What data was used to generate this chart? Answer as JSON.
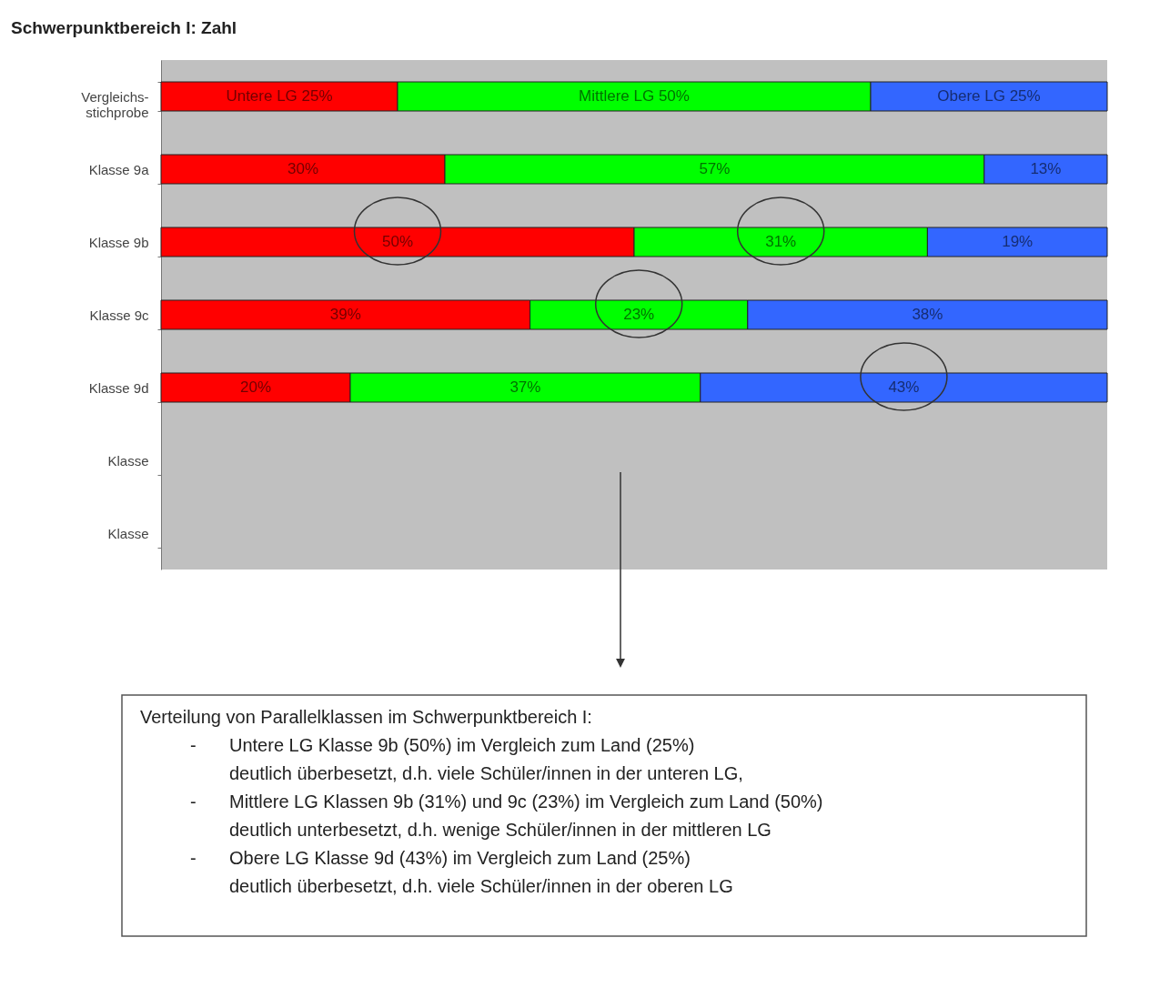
{
  "chart_data": {
    "type": "bar",
    "orientation": "horizontal",
    "stacked": true,
    "title": "Schwerpunktbereich I:  Zahl",
    "categories": [
      "Vergleichs-\nstichprobe",
      "Klasse 9a",
      "Klasse 9b",
      "Klasse 9c",
      "Klasse 9d",
      "Klasse",
      "Klasse"
    ],
    "xlim": [
      0,
      100
    ],
    "grid": false,
    "series": [
      {
        "color": "#ff0000",
        "values": [
          25,
          30,
          50,
          39,
          20,
          null,
          null
        ],
        "value_labels": [
          "Untere LG 25%",
          "30%",
          "50%",
          "39%",
          "20%",
          null,
          null
        ]
      },
      {
        "color": "#00ff00",
        "values": [
          50,
          57,
          31,
          23,
          37,
          null,
          null
        ],
        "value_labels": [
          "Mittlere LG 50%",
          "57%",
          "31%",
          "23%",
          "37%",
          null,
          null
        ]
      },
      {
        "color": "#3366ff",
        "values": [
          25,
          13,
          19,
          38,
          43,
          null,
          null
        ],
        "value_labels": [
          "Obere LG 25%",
          "13%",
          "19%",
          "38%",
          "43%",
          null,
          null
        ]
      }
    ],
    "annotations": [
      "Verteilung von Parallelklassen im Schwerpunktbereich I:",
      "- Untere LG Klasse 9b (50%) im Vergleich zum Land (25%)",
      "deutlich überbesetzt, d.h. viele Schüler/innen in der unteren LG,",
      "- Mittlere LG Klassen 9b (31%) und 9c (23%) im Vergleich zum Land (50%)",
      "deutlich unterbesetzt, d.h. wenige Schüler/innen in der mittleren LG",
      "- Obere LG Klasse 9d (43%) im Vergleich zum Land (25%)",
      "deutlich überbesetzt, d.h. viele Schüler/innen in der oberen LG"
    ]
  }
}
